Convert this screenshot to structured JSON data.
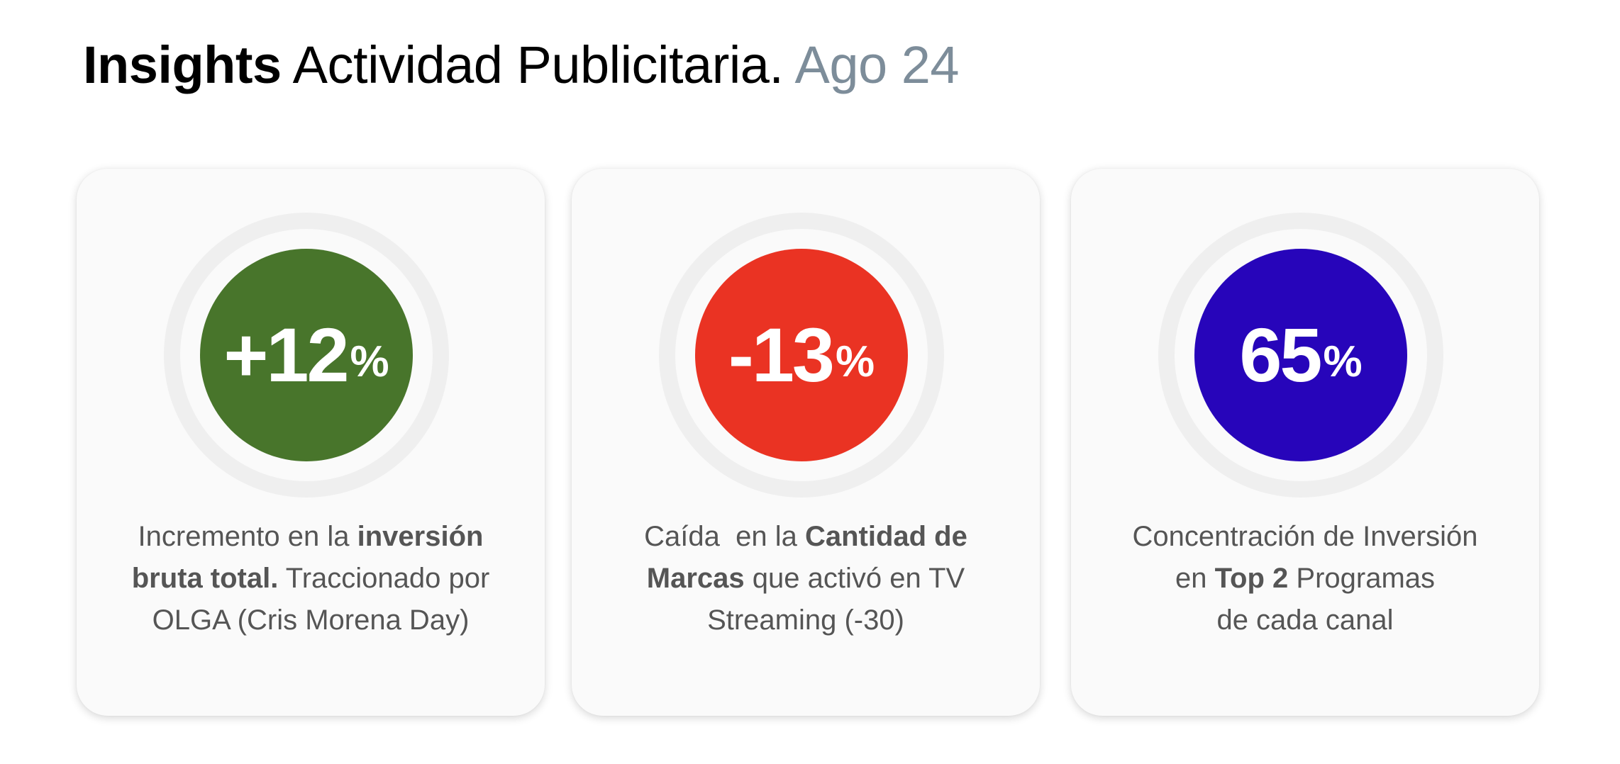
{
  "header": {
    "title_strong": "Insights",
    "title_regular": " Actividad Publicitaria.",
    "title_period": " Ago 24"
  },
  "colors": {
    "positive": "#48752b",
    "negative": "#ea3323",
    "neutral": "#2705ba",
    "period": "#7d8d9a",
    "body_text": "#555555"
  },
  "cards": [
    {
      "metric_value": "+12",
      "metric_unit": "%",
      "color": "#48752b",
      "desc": {
        "l1a": "Incremento en la ",
        "l1b": "inversión",
        "l2a": "bruta total.",
        "l2b": " Traccionado por",
        "l3": "OLGA (Cris Morena Day)"
      }
    },
    {
      "metric_value": "-13",
      "metric_unit": "%",
      "color": "#ea3323",
      "desc": {
        "l1a": "Caída  en la ",
        "l1b": "Cantidad de",
        "l2a": "Marcas",
        "l2b": " que activó en TV",
        "l3": "Streaming (-30)"
      }
    },
    {
      "metric_value": "65",
      "metric_unit": "%",
      "color": "#2705ba",
      "desc": {
        "l1": "Concentración de Inversión",
        "l2a": "en ",
        "l2b": "Top 2",
        "l2c": " Programas",
        "l3": "de cada canal"
      }
    }
  ]
}
